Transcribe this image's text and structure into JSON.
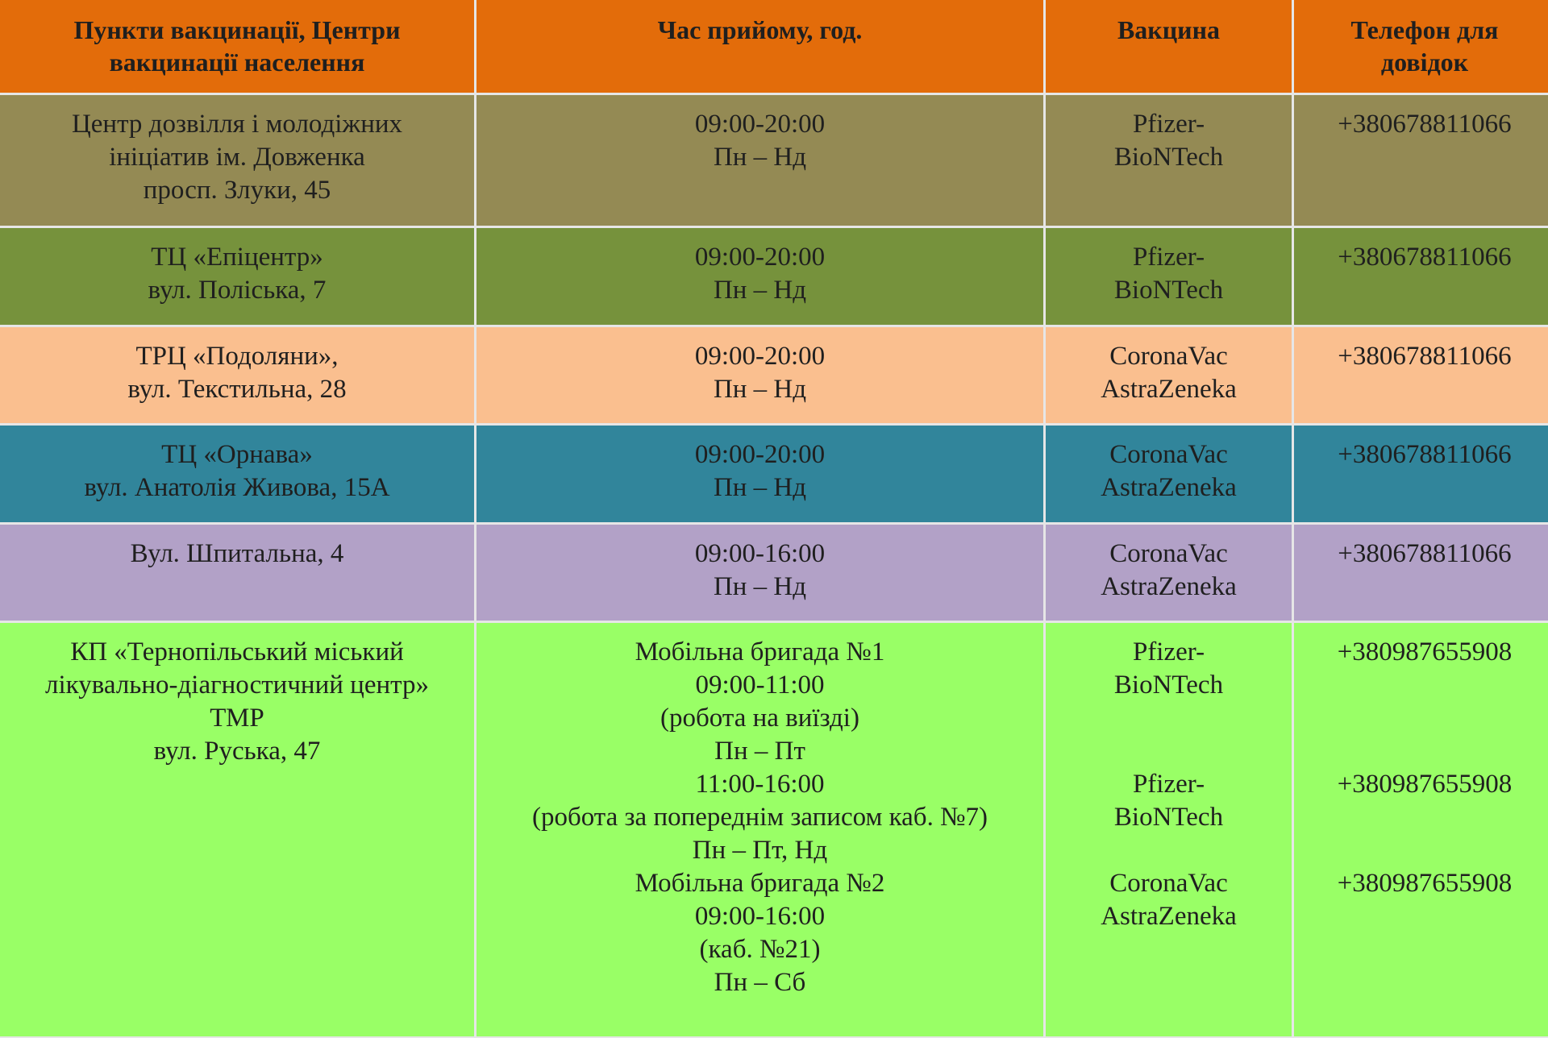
{
  "colors": {
    "header": "#e36c0a",
    "row1": "#948a54",
    "row2": "#76923c",
    "row3": "#fabf8f",
    "row4": "#31859b",
    "row5": "#b2a1c7",
    "row6": "#99ff66",
    "grid": "#e6e6e6"
  },
  "table": {
    "headers": [
      [
        "Пункти вакцинації, Центри",
        "вакцинації населення"
      ],
      [
        "Час прийому, год."
      ],
      [
        "Вакцина"
      ],
      [
        "Телефон для",
        "довідок"
      ]
    ],
    "rows": [
      {
        "place": [
          "Центр дозвілля і молодіжних",
          "ініціатив ім. Довженка",
          "просп. Злуки, 45"
        ],
        "hours": [
          "09:00-20:00",
          "Пн – Нд"
        ],
        "vaccine": [
          "Pfizer-",
          "BioNTech"
        ],
        "phone": [
          "+380678811066"
        ]
      },
      {
        "place": [
          "ТЦ «Епіцентр»",
          "вул. Поліська, 7"
        ],
        "hours": [
          "09:00-20:00",
          "Пн – Нд"
        ],
        "vaccine": [
          "Pfizer-",
          "BioNTech"
        ],
        "phone": [
          "+380678811066"
        ]
      },
      {
        "place": [
          "ТРЦ «Подоляни»,",
          "вул. Текстильна, 28"
        ],
        "hours": [
          "09:00-20:00",
          "Пн – Нд"
        ],
        "vaccine": [
          "CoronaVac",
          "AstraZeneka"
        ],
        "phone": [
          "+380678811066"
        ]
      },
      {
        "place": [
          "ТЦ «Орнава»",
          "вул. Анатолія Живова, 15А"
        ],
        "hours": [
          "09:00-20:00",
          "Пн – Нд"
        ],
        "vaccine": [
          "CoronaVac",
          "AstraZeneka"
        ],
        "phone": [
          "+380678811066"
        ]
      },
      {
        "place": [
          "Вул. Шпитальна, 4"
        ],
        "hours": [
          "09:00-16:00",
          "Пн – Нд"
        ],
        "vaccine": [
          "CoronaVac",
          "AstraZeneka"
        ],
        "phone": [
          "+380678811066"
        ]
      },
      {
        "place": [
          "КП «Тернопільський міський",
          "лікувально-діагностичний центр»",
          "ТМР",
          "вул. Руська, 47"
        ],
        "hours": [
          "Мобільна бригада №1",
          "09:00-11:00",
          "(робота на виїзді)",
          "Пн – Пт",
          "11:00-16:00",
          "(робота за попереднім записом каб. №7)",
          "Пн – Пт, Нд",
          "Мобільна бригада №2",
          "09:00-16:00",
          "(каб. №21)",
          "Пн – Сб"
        ],
        "vaccine": [
          "Pfizer-",
          "BioNTech",
          "",
          "",
          "Pfizer-",
          "BioNTech",
          "",
          "CoronaVac",
          "AstraZeneka"
        ],
        "phone": [
          "+380987655908",
          "",
          "",
          "",
          "+380987655908",
          "",
          "",
          "+380987655908"
        ]
      }
    ]
  }
}
